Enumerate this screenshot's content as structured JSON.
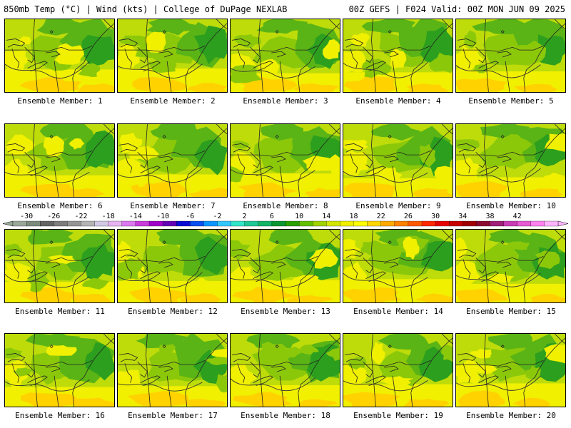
{
  "header": {
    "left": "850mb Temp (°C) | Wind (kts) | College of DuPage NEXLAB",
    "right": "00Z GEFS | F024 Valid: 00Z MON JUN 09 2025"
  },
  "members": [
    {
      "label": "Ensemble Member: 1"
    },
    {
      "label": "Ensemble Member: 2"
    },
    {
      "label": "Ensemble Member: 3"
    },
    {
      "label": "Ensemble Member: 4"
    },
    {
      "label": "Ensemble Member: 5"
    },
    {
      "label": "Ensemble Member: 6"
    },
    {
      "label": "Ensemble Member: 7"
    },
    {
      "label": "Ensemble Member: 8"
    },
    {
      "label": "Ensemble Member: 9"
    },
    {
      "label": "Ensemble Member: 10"
    },
    {
      "label": "Ensemble Member: 11"
    },
    {
      "label": "Ensemble Member: 12"
    },
    {
      "label": "Ensemble Member: 13"
    },
    {
      "label": "Ensemble Member: 14"
    },
    {
      "label": "Ensemble Member: 15"
    },
    {
      "label": "Ensemble Member: 16"
    },
    {
      "label": "Ensemble Member: 17"
    },
    {
      "label": "Ensemble Member: 18"
    },
    {
      "label": "Ensemble Member: 19"
    },
    {
      "label": "Ensemble Member: 20"
    }
  ],
  "colorbar": {
    "tick_labels": [
      "-30",
      "-26",
      "-22",
      "-18",
      "-14",
      "-10",
      "-6",
      "-2",
      "2",
      "6",
      "10",
      "14",
      "18",
      "22",
      "26",
      "30",
      "34",
      "38",
      "42"
    ],
    "colors": [
      "#9aa89a",
      "#7c8c7c",
      "#646464",
      "#7d7d7d",
      "#969696",
      "#b4b4b4",
      "#d2c8e6",
      "#e6b4f0",
      "#dc78f0",
      "#c83cdc",
      "#a000c8",
      "#6400b4",
      "#0a0ad2",
      "#0a50f0",
      "#0a96ff",
      "#32c8ff",
      "#32e6c8",
      "#1ec896",
      "#14b464",
      "#0a9632",
      "#28a000",
      "#64be00",
      "#a0d200",
      "#d2e600",
      "#f0f000",
      "#ffff00",
      "#ffd700",
      "#ffaa00",
      "#ff8200",
      "#ff5a00",
      "#ff2800",
      "#e60000",
      "#c80000",
      "#a00000",
      "#8c0a32",
      "#a01e78",
      "#c83cb4",
      "#e65ad2",
      "#ff82f0",
      "#ffb4ff"
    ]
  },
  "palette": {
    "dark_green": "#2d9f1e",
    "mid_green": "#5ab415",
    "light_green": "#8cc80a",
    "yellow_green": "#bedc0a",
    "yellow": "#f0f000",
    "orange_yellow": "#ffd200"
  }
}
